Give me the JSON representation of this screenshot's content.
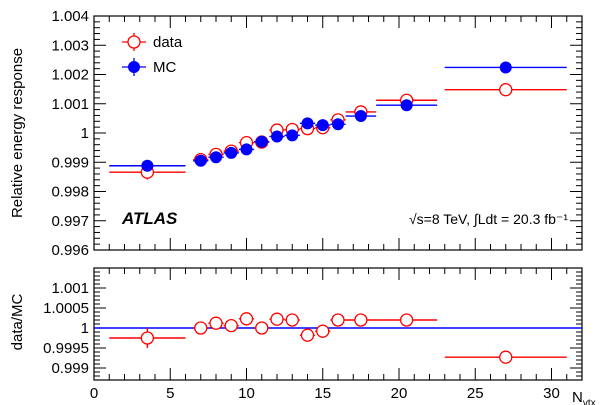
{
  "chart_data": {
    "type": "scatter",
    "xlabel": "N_vtx",
    "xlim": [
      0,
      32
    ],
    "x_ticks": [
      0,
      5,
      10,
      15,
      20,
      25,
      30
    ],
    "grid": false,
    "legend_position": "top-left",
    "annotations": {
      "atlas": "ATLAS",
      "energy": "√s=8 TeV, ∫Ldt = 20.3 fb⁻¹"
    },
    "top": {
      "ylabel": "Relative energy response",
      "ylim": [
        0.996,
        1.004
      ],
      "y_ticks": [
        "0.996",
        "0.997",
        "0.998",
        "0.999",
        "1",
        "1.001",
        "1.002",
        "1.003",
        "1.004"
      ],
      "series": [
        {
          "name": "data",
          "color": "#ff0000",
          "marker": "open-circle",
          "points": [
            {
              "x": 3.5,
              "xlo": 1,
              "xhi": 6,
              "y": 0.99866,
              "yerr": 0.00025
            },
            {
              "x": 7,
              "xlo": 6.5,
              "xhi": 7.5,
              "y": 0.99909,
              "yerr": 6e-05
            },
            {
              "x": 8,
              "xlo": 7.5,
              "xhi": 8.5,
              "y": 0.99927,
              "yerr": 6e-05
            },
            {
              "x": 9,
              "xlo": 8.5,
              "xhi": 9.5,
              "y": 0.99938,
              "yerr": 6e-05
            },
            {
              "x": 10,
              "xlo": 9.5,
              "xhi": 10.5,
              "y": 0.99967,
              "yerr": 6e-05
            },
            {
              "x": 11,
              "xlo": 10.5,
              "xhi": 11.5,
              "y": 0.99969,
              "yerr": 6e-05
            },
            {
              "x": 12,
              "xlo": 11.5,
              "xhi": 12.5,
              "y": 1.0001,
              "yerr": 6e-05
            },
            {
              "x": 13,
              "xlo": 12.5,
              "xhi": 13.5,
              "y": 1.00012,
              "yerr": 6e-05
            },
            {
              "x": 14,
              "xlo": 13.5,
              "xhi": 14.5,
              "y": 1.00015,
              "yerr": 6e-05
            },
            {
              "x": 15,
              "xlo": 14.5,
              "xhi": 15.5,
              "y": 1.00018,
              "yerr": 6e-05
            },
            {
              "x": 16,
              "xlo": 15.5,
              "xhi": 16.5,
              "y": 1.00045,
              "yerr": 6e-05
            },
            {
              "x": 17.5,
              "xlo": 16.5,
              "xhi": 18.5,
              "y": 1.00072,
              "yerr": 8e-05
            },
            {
              "x": 20.5,
              "xlo": 18.5,
              "xhi": 22.5,
              "y": 1.00112,
              "yerr": 8e-05
            },
            {
              "x": 27,
              "xlo": 23,
              "xhi": 31,
              "y": 1.00148,
              "yerr": 0.00015
            }
          ]
        },
        {
          "name": "MC",
          "color": "#0000ff",
          "marker": "filled-circle",
          "points": [
            {
              "x": 3.5,
              "xlo": 1,
              "xhi": 6,
              "y": 0.99888,
              "yerr": 4e-05
            },
            {
              "x": 7,
              "xlo": 6.5,
              "xhi": 7.5,
              "y": 0.99905,
              "yerr": 3e-05
            },
            {
              "x": 8,
              "xlo": 7.5,
              "xhi": 8.5,
              "y": 0.99917,
              "yerr": 3e-05
            },
            {
              "x": 9,
              "xlo": 8.5,
              "xhi": 9.5,
              "y": 0.99932,
              "yerr": 3e-05
            },
            {
              "x": 10,
              "xlo": 9.5,
              "xhi": 10.5,
              "y": 0.99944,
              "yerr": 3e-05
            },
            {
              "x": 11,
              "xlo": 10.5,
              "xhi": 11.5,
              "y": 0.9997,
              "yerr": 3e-05
            },
            {
              "x": 12,
              "xlo": 11.5,
              "xhi": 12.5,
              "y": 0.99988,
              "yerr": 3e-05
            },
            {
              "x": 13,
              "xlo": 12.5,
              "xhi": 13.5,
              "y": 0.99992,
              "yerr": 3e-05
            },
            {
              "x": 14,
              "xlo": 13.5,
              "xhi": 14.5,
              "y": 1.00033,
              "yerr": 3e-05
            },
            {
              "x": 15,
              "xlo": 14.5,
              "xhi": 15.5,
              "y": 1.00027,
              "yerr": 3e-05
            },
            {
              "x": 16,
              "xlo": 15.5,
              "xhi": 16.5,
              "y": 1.0003,
              "yerr": 3e-05
            },
            {
              "x": 17.5,
              "xlo": 16.5,
              "xhi": 18.5,
              "y": 1.00058,
              "yerr": 3e-05
            },
            {
              "x": 20.5,
              "xlo": 18.5,
              "xhi": 22.5,
              "y": 1.00095,
              "yerr": 3e-05
            },
            {
              "x": 27,
              "xlo": 23,
              "xhi": 31,
              "y": 1.00224,
              "yerr": 4e-05
            }
          ]
        }
      ]
    },
    "bottom": {
      "ylabel": "data/MC",
      "ylim": [
        0.9987,
        1.0015
      ],
      "y_ticks": [
        "0.999",
        "0.9995",
        "1",
        "1.0005",
        "1.001"
      ],
      "reference_line": {
        "y": 1.0,
        "color": "#0000ff"
      },
      "series": [
        {
          "name": "data/MC",
          "color": "#ff0000",
          "marker": "open-circle",
          "points": [
            {
              "x": 3.5,
              "xlo": 1,
              "xhi": 6,
              "y": 0.99975,
              "yerr": 0.00025
            },
            {
              "x": 7,
              "xlo": 6.5,
              "xhi": 7.5,
              "y": 1.0,
              "yerr": 8e-05
            },
            {
              "x": 8,
              "xlo": 7.5,
              "xhi": 8.5,
              "y": 1.00012,
              "yerr": 8e-05
            },
            {
              "x": 9,
              "xlo": 8.5,
              "xhi": 9.5,
              "y": 1.00006,
              "yerr": 8e-05
            },
            {
              "x": 10,
              "xlo": 9.5,
              "xhi": 10.5,
              "y": 1.00023,
              "yerr": 8e-05
            },
            {
              "x": 11,
              "xlo": 10.5,
              "xhi": 11.5,
              "y": 1.0,
              "yerr": 8e-05
            },
            {
              "x": 12,
              "xlo": 11.5,
              "xhi": 12.5,
              "y": 1.00022,
              "yerr": 8e-05
            },
            {
              "x": 13,
              "xlo": 12.5,
              "xhi": 13.5,
              "y": 1.0002,
              "yerr": 8e-05
            },
            {
              "x": 14,
              "xlo": 13.5,
              "xhi": 14.5,
              "y": 0.99982,
              "yerr": 8e-05
            },
            {
              "x": 15,
              "xlo": 14.5,
              "xhi": 15.5,
              "y": 0.99992,
              "yerr": 8e-05
            },
            {
              "x": 16,
              "xlo": 15.5,
              "xhi": 16.5,
              "y": 1.0002,
              "yerr": 0.00012
            },
            {
              "x": 17.5,
              "xlo": 16.5,
              "xhi": 18.5,
              "y": 1.0002,
              "yerr": 0.00015
            },
            {
              "x": 20.5,
              "xlo": 18.5,
              "xhi": 22.5,
              "y": 1.0002,
              "yerr": 8e-05
            },
            {
              "x": 27,
              "xlo": 23,
              "xhi": 31,
              "y": 0.99927,
              "yerr": 0.00015
            }
          ]
        }
      ]
    }
  }
}
